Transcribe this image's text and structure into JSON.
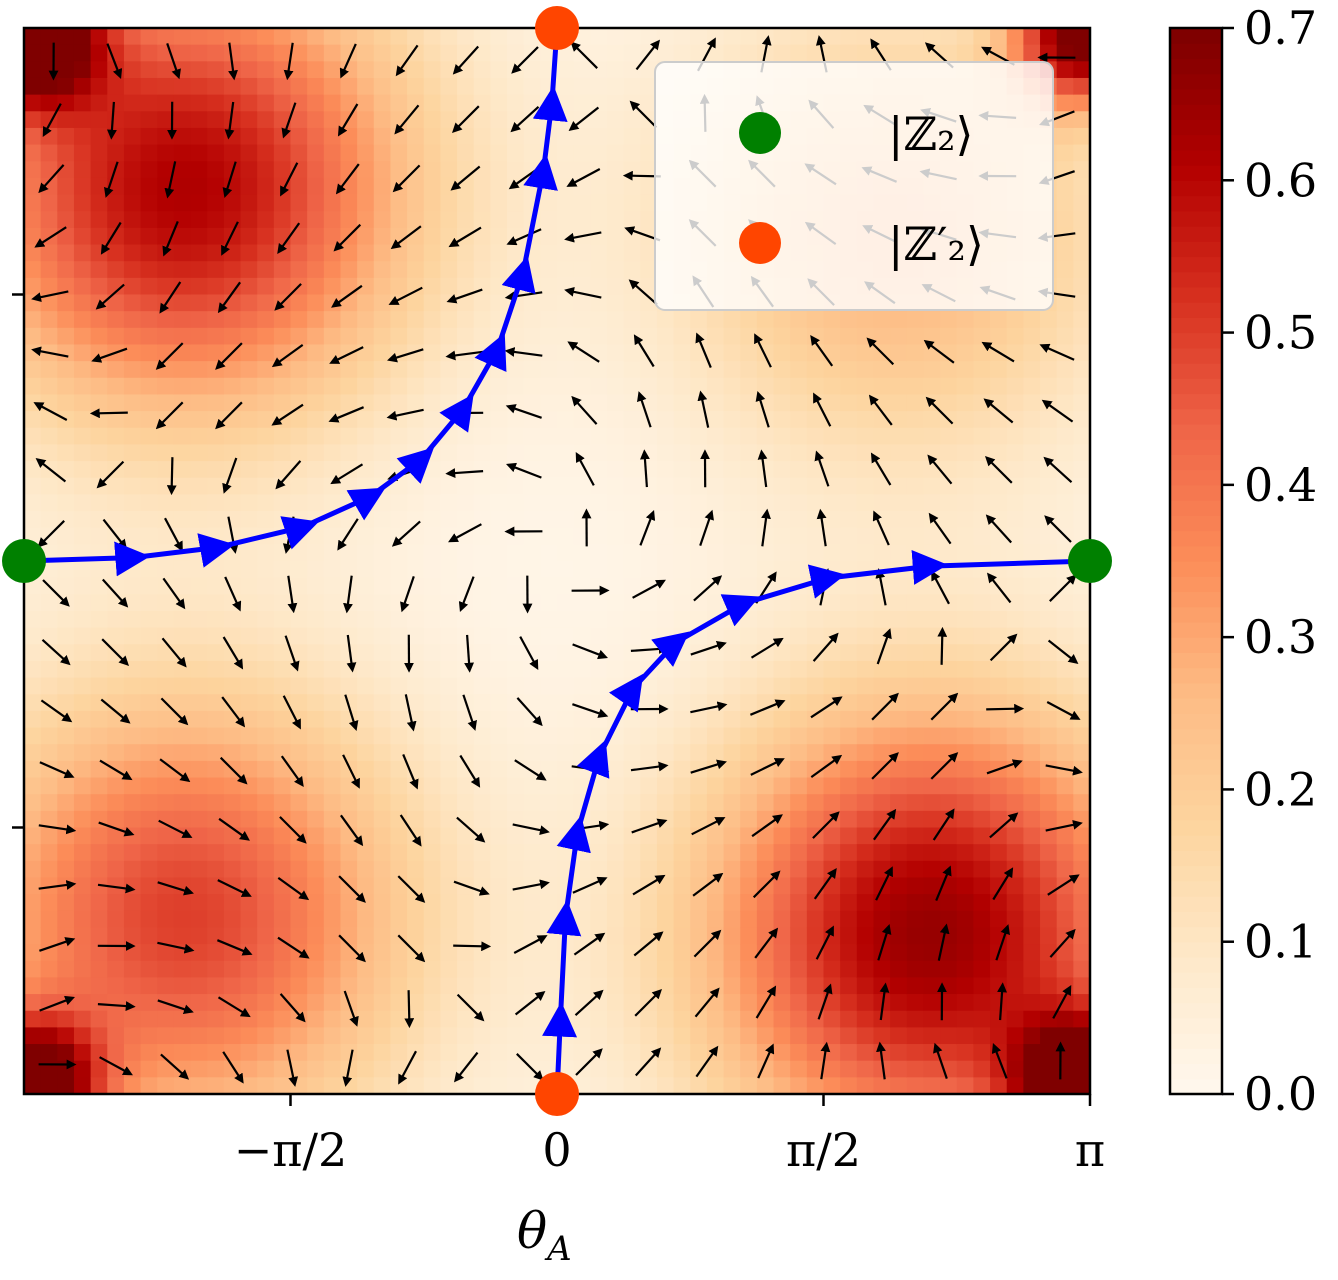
{
  "chart_data": {
    "type": "heatmap",
    "title": "",
    "xlabel": "θ_A",
    "xlabel_main": "θ",
    "xlabel_sub": "A",
    "ylabel": "",
    "xlim": [
      -3.14159,
      3.14159
    ],
    "ylim": [
      -3.14159,
      3.14159
    ],
    "x_ticks": [
      {
        "value": -1.5708,
        "label": "−π/2"
      },
      {
        "value": 0,
        "label": "0"
      },
      {
        "value": 1.5708,
        "label": "π/2"
      },
      {
        "value": 3.14159,
        "label": "π"
      }
    ],
    "y_ticks": [
      {
        "value": 1.5708,
        "label": ""
      },
      {
        "value": -1.5708,
        "label": ""
      }
    ],
    "colorbar": {
      "colormap": "OrRd",
      "range": [
        0.0,
        0.7
      ],
      "ticks": [
        {
          "value": 0.0,
          "label": "0.0"
        },
        {
          "value": 0.1,
          "label": "0.1"
        },
        {
          "value": 0.2,
          "label": "0.2"
        },
        {
          "value": 0.3,
          "label": "0.3"
        },
        {
          "value": 0.4,
          "label": "0.4"
        },
        {
          "value": 0.5,
          "label": "0.5"
        },
        {
          "value": 0.6,
          "label": "0.6"
        },
        {
          "value": 0.7,
          "label": "0.7"
        }
      ]
    },
    "heat_peaks": [
      {
        "x": -2.2,
        "y": 2.2,
        "value": 0.62
      },
      {
        "x": 2.2,
        "y": -2.2,
        "value": 0.66
      },
      {
        "x": -2.2,
        "y": -2.1,
        "value": 0.5
      },
      {
        "x": 2.0,
        "y": 1.9,
        "value": 0.28
      },
      {
        "x": -3.1,
        "y": 3.1,
        "value": 0.7
      },
      {
        "x": 3.1,
        "y": 3.1,
        "value": 0.7
      },
      {
        "x": -3.1,
        "y": -3.1,
        "value": 0.7
      },
      {
        "x": 3.1,
        "y": -3.1,
        "value": 0.7
      }
    ],
    "trajectories": [
      {
        "name": "upper-left trajectory",
        "color": "#0000ff",
        "points": [
          [
            -3.14,
            0.0
          ],
          [
            -2.5,
            0.02
          ],
          [
            -2.0,
            0.08
          ],
          [
            -1.5,
            0.2
          ],
          [
            -1.1,
            0.38
          ],
          [
            -0.8,
            0.6
          ],
          [
            -0.55,
            0.9
          ],
          [
            -0.35,
            1.25
          ],
          [
            -0.2,
            1.7
          ],
          [
            -0.08,
            2.3
          ],
          [
            -0.03,
            2.7
          ],
          [
            0.0,
            3.14
          ]
        ]
      },
      {
        "name": "lower-right trajectory",
        "color": "#0000ff",
        "points": [
          [
            0.0,
            -3.14
          ],
          [
            0.02,
            -2.7
          ],
          [
            0.05,
            -2.1
          ],
          [
            0.12,
            -1.6
          ],
          [
            0.25,
            -1.15
          ],
          [
            0.45,
            -0.75
          ],
          [
            0.7,
            -0.48
          ],
          [
            1.1,
            -0.25
          ],
          [
            1.6,
            -0.1
          ],
          [
            2.2,
            -0.03
          ],
          [
            3.14,
            0.0
          ]
        ]
      }
    ],
    "special_points": [
      {
        "name": "Z2 left",
        "state": "Z2",
        "x": -3.14159,
        "y": 0,
        "color": "#008000"
      },
      {
        "name": "Z2 right",
        "state": "Z2",
        "x": 3.14159,
        "y": 0,
        "color": "#008000"
      },
      {
        "name": "Z2prime top",
        "state": "Z2prime",
        "x": 0,
        "y": 3.14159,
        "color": "#ff4500"
      },
      {
        "name": "Z2prime bottom",
        "state": "Z2prime",
        "x": 0,
        "y": -3.14159,
        "color": "#ff4500"
      }
    ],
    "legend": {
      "placement": "top-right",
      "entries": [
        {
          "label": "|ℤ₂⟩",
          "color": "#008000",
          "marker": "circle"
        },
        {
          "label": "|ℤ′₂⟩",
          "color": "#ff4500",
          "marker": "circle"
        }
      ]
    },
    "quiver": {
      "grid_n": 18,
      "color": "#000000"
    }
  }
}
